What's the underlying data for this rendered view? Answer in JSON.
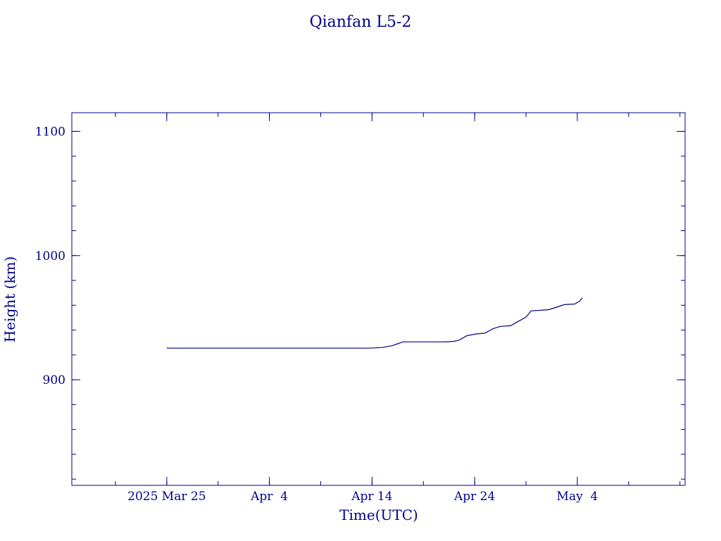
{
  "chart_data": {
    "type": "line",
    "title": "Qianfan L5-2",
    "xlabel": "Time(UTC)",
    "ylabel": "Height (km)",
    "ylim": [
      815,
      1115
    ],
    "xlim": [
      "2025-03-15T18:00",
      "2025-05-14T12:00"
    ],
    "y_major_ticks": [
      900,
      1000,
      1100
    ],
    "y_tick_labels": [
      "900",
      "1000",
      "1100"
    ],
    "y_minor_step": 20,
    "x_tick_labels": [
      {
        "date": "2025-03-25",
        "label": "2025 Mar 25"
      },
      {
        "date": "2025-04-04",
        "label": "Apr  4"
      },
      {
        "date": "2025-04-14",
        "label": "Apr 14"
      },
      {
        "date": "2025-04-24",
        "label": "Apr 24"
      },
      {
        "date": "2025-05-04",
        "label": "May  4"
      }
    ],
    "x_minor_step_days": 5,
    "line_color": "#00008b",
    "grid": false,
    "series": [
      {
        "points": [
          {
            "x": "2025-03-25T00:00",
            "y": 925.5
          },
          {
            "x": "2025-04-13T18:00",
            "y": 925.5
          },
          {
            "x": "2025-04-15T00:00",
            "y": 926.0
          },
          {
            "x": "2025-04-16T00:00",
            "y": 927.5
          },
          {
            "x": "2025-04-16T12:00",
            "y": 929.0
          },
          {
            "x": "2025-04-17T00:00",
            "y": 930.5
          },
          {
            "x": "2025-04-21T06:00",
            "y": 930.5
          },
          {
            "x": "2025-04-22T00:00",
            "y": 931.0
          },
          {
            "x": "2025-04-22T12:00",
            "y": 932.0
          },
          {
            "x": "2025-04-23T06:00",
            "y": 935.5
          },
          {
            "x": "2025-04-24T06:00",
            "y": 937.0
          },
          {
            "x": "2025-04-25T00:00",
            "y": 937.5
          },
          {
            "x": "2025-04-25T18:00",
            "y": 941.0
          },
          {
            "x": "2025-04-26T12:00",
            "y": 943.0
          },
          {
            "x": "2025-04-27T12:00",
            "y": 943.5
          },
          {
            "x": "2025-04-28T06:00",
            "y": 947.0
          },
          {
            "x": "2025-04-29T00:00",
            "y": 950.5
          },
          {
            "x": "2025-04-29T12:00",
            "y": 955.5
          },
          {
            "x": "2025-04-30T12:00",
            "y": 956.0
          },
          {
            "x": "2025-05-01T06:00",
            "y": 956.5
          },
          {
            "x": "2025-05-02T00:00",
            "y": 958.5
          },
          {
            "x": "2025-05-02T18:00",
            "y": 960.5
          },
          {
            "x": "2025-05-03T18:00",
            "y": 961.0
          },
          {
            "x": "2025-05-04T06:00",
            "y": 963.5
          },
          {
            "x": "2025-05-04T12:00",
            "y": 966.0
          }
        ]
      }
    ]
  }
}
